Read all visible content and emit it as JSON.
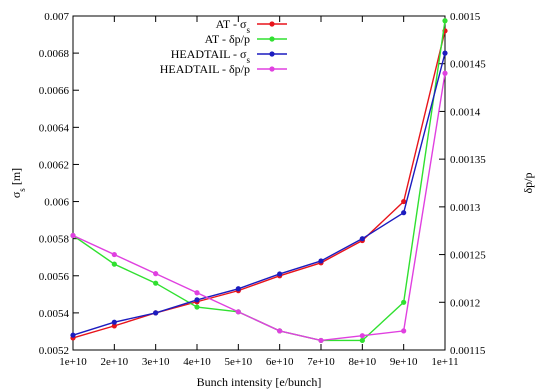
{
  "chart_data": {
    "type": "line",
    "xlabel": "Bunch intensity [e/bunch]",
    "ylabel_left": "σs [m]",
    "ylabel_right": "δp/p",
    "x": [
      10000000000.0,
      20000000000.0,
      30000000000.0,
      40000000000.0,
      50000000000.0,
      60000000000.0,
      70000000000.0,
      80000000000.0,
      90000000000.0,
      100000000000.0
    ],
    "x_tick_labels": [
      "1e+10",
      "2e+10",
      "3e+10",
      "4e+10",
      "5e+10",
      "6e+10",
      "7e+10",
      "8e+10",
      "9e+10",
      "1e+11"
    ],
    "xlim": [
      10000000000.0,
      100000000000.0
    ],
    "ylim_left": [
      0.0052,
      0.007
    ],
    "ylim_right": [
      0.00115,
      0.0015
    ],
    "y_left_ticks": [
      "0.0052",
      "0.0054",
      "0.0056",
      "0.0058",
      "0.006",
      "0.0062",
      "0.0064",
      "0.0066",
      "0.0068",
      "0.007"
    ],
    "y_right_ticks": [
      "0.00115",
      "0.0012",
      "0.00125",
      "0.0013",
      "0.00135",
      "0.0014",
      "0.00145",
      "0.0015"
    ],
    "grid": false,
    "legend_position": "top-right",
    "series": [
      {
        "name": "AT - σs",
        "legend_main": "AT - σ",
        "legend_sub": "s",
        "axis": "left",
        "color": "#e8141b",
        "values": [
          0.005265,
          0.00533,
          0.0054,
          0.00546,
          0.00552,
          0.0056,
          0.00567,
          0.00579,
          0.006,
          0.00692
        ]
      },
      {
        "name": "AT - δp/p",
        "legend_main": "AT - δp/p",
        "legend_sub": "",
        "axis": "right",
        "color": "#30e030",
        "values": [
          0.00127,
          0.00124,
          0.00122,
          0.001195,
          0.00119,
          0.00117,
          0.00116,
          0.00116,
          0.0012,
          0.001495
        ]
      },
      {
        "name": "HEADTAIL - σs",
        "legend_main": "HEADTAIL - σ",
        "legend_sub": "s",
        "axis": "left",
        "color": "#1c1cbf",
        "values": [
          0.00528,
          0.00535,
          0.0054,
          0.00547,
          0.00553,
          0.00561,
          0.00568,
          0.0058,
          0.00594,
          0.0068
        ]
      },
      {
        "name": "HEADTAIL - δp/p",
        "legend_main": "HEADTAIL - δp/p",
        "legend_sub": "",
        "axis": "right",
        "color": "#e040e0",
        "values": [
          0.00127,
          0.00125,
          0.00123,
          0.00121,
          0.00119,
          0.00117,
          0.00116,
          0.001165,
          0.00117,
          0.00144
        ]
      }
    ]
  }
}
